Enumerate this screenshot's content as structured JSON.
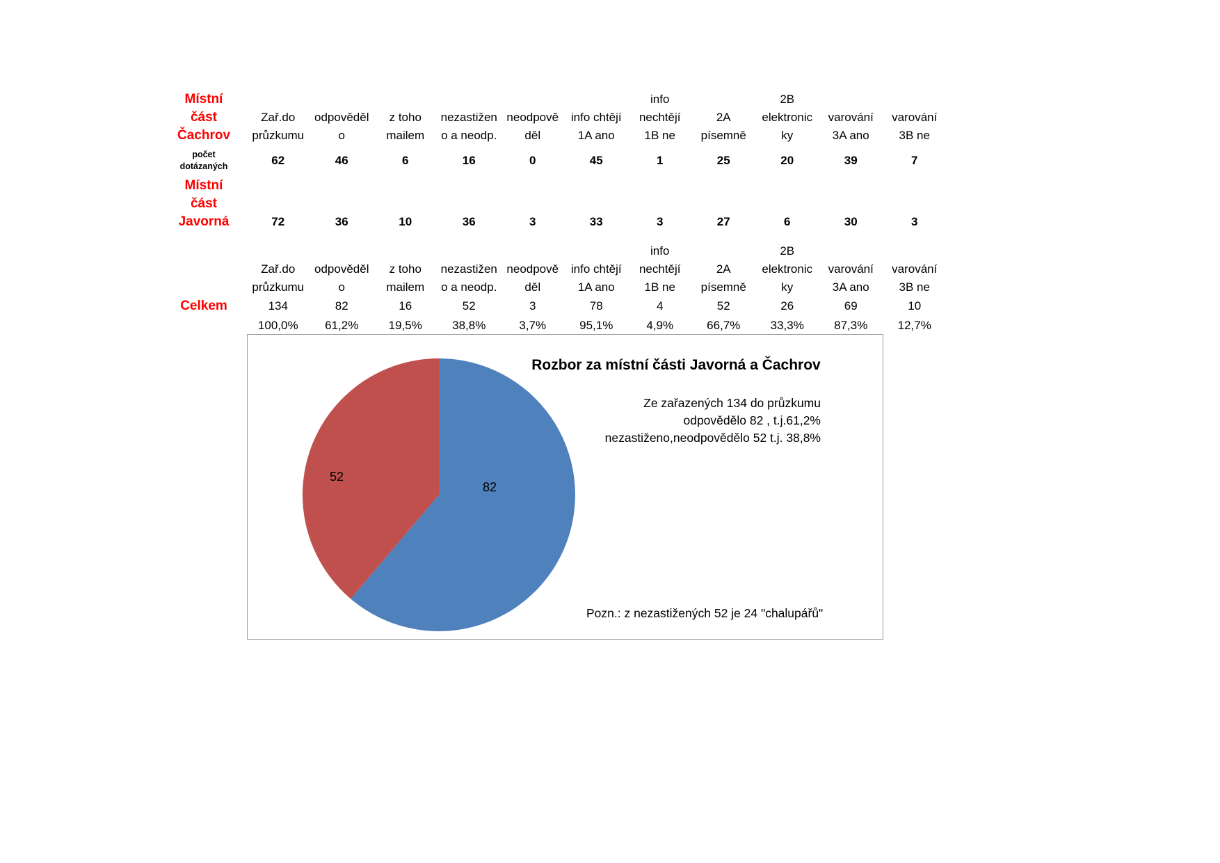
{
  "table": {
    "headers": [
      "Zař.do\nprůzkumu",
      "odpověděl\no",
      "z toho\nmailem",
      "nezastižen\no a neodp.",
      "neodpově\nděl",
      "info chtějí\n1A ano",
      "info\nnechtějí\n1B ne",
      "2A\npísemně",
      "2B\nelektronic\nky",
      "varování\n3A ano",
      "varování\n3B ne"
    ],
    "rows": {
      "cachrov": {
        "label": "Místní\nčást\nČachrov",
        "sublabel": "počet\ndotázaných",
        "values": [
          "62",
          "46",
          "6",
          "16",
          "0",
          "45",
          "1",
          "25",
          "20",
          "39",
          "7"
        ]
      },
      "javorna": {
        "label": "Místní\nčást\nJavorná",
        "values": [
          "72",
          "36",
          "10",
          "36",
          "3",
          "33",
          "3",
          "27",
          "6",
          "30",
          "3"
        ]
      },
      "celkem": {
        "label": "Celkem",
        "values": [
          "134",
          "82",
          "16",
          "52",
          "3",
          "78",
          "4",
          "52",
          "26",
          "69",
          "10"
        ],
        "percents": [
          "100,0%",
          "61,2%",
          "19,5%",
          "38,8%",
          "3,7%",
          "95,1%",
          "4,9%",
          "66,7%",
          "33,3%",
          "87,3%",
          "12,7%"
        ]
      }
    }
  },
  "chart_data": {
    "type": "pie",
    "title": "Rozbor za místní části Javorná a Čachrov",
    "slices": [
      {
        "label": "odpovědělo",
        "value": 82,
        "percent": "61,2%",
        "color": "#4F81BD"
      },
      {
        "label": "nezastiženo, neodpovědělo",
        "value": 52,
        "percent": "38,8%",
        "color": "#C0504D"
      }
    ],
    "total": 134,
    "annotation": "Ze zařazených 134 do průzkumu\nodpovědělo 82 , t.j.61,2%\nnezastiženo,neodpovědělo 52 t.j. 38,8%",
    "note": "Pozn.: z nezastižených 52 je 24 \"chalupářů\"",
    "legend_position": "none",
    "grid": false
  }
}
